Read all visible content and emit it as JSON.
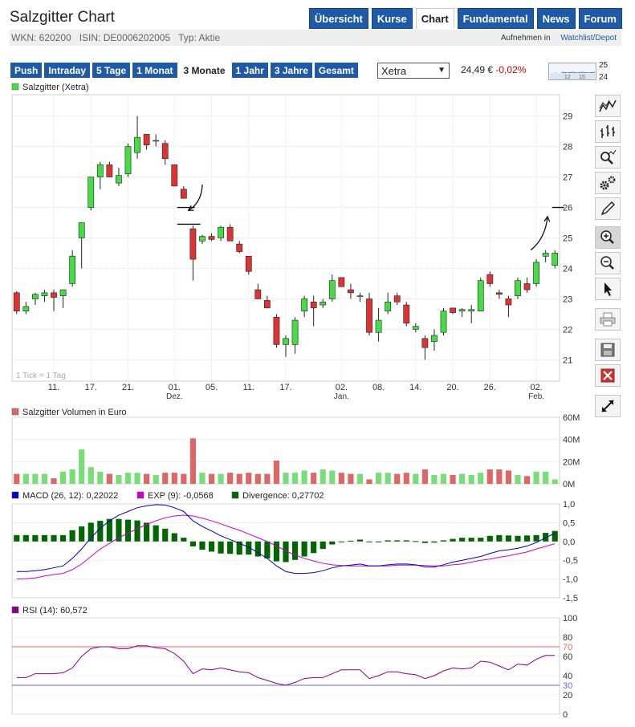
{
  "page": {
    "title": "Salzgitter Chart",
    "wkn": "WKN: 620200",
    "isin": "ISIN: DE0006202005",
    "type": "Typ: Aktie",
    "watchlist_prefix": "Aufnehmen in",
    "watchlist_link": "Watchlist/Depot"
  },
  "nav": [
    {
      "label": "Übersicht",
      "active": false
    },
    {
      "label": "Kurse",
      "active": false
    },
    {
      "label": "Chart",
      "active": true
    },
    {
      "label": "Fundamental",
      "active": false
    },
    {
      "label": "News",
      "active": false
    },
    {
      "label": "Forum",
      "active": false
    }
  ],
  "periods": [
    {
      "label": "Push",
      "active": false
    },
    {
      "label": "Intraday",
      "active": false
    },
    {
      "label": "5 Tage",
      "active": false
    },
    {
      "label": "1 Monat",
      "active": false
    },
    {
      "label": "3 Monate",
      "active": true
    },
    {
      "label": "1 Jahr",
      "active": false
    },
    {
      "label": "3 Jahre",
      "active": false
    },
    {
      "label": "Gesamt",
      "active": false
    }
  ],
  "exchange": {
    "selected": "Xetra"
  },
  "quote": {
    "price": "24,49 €",
    "change": "-0,02%"
  },
  "thumbnail": {
    "hi": "25",
    "lo": "24",
    "ticks": [
      "12",
      "15"
    ]
  },
  "tools": [
    "line-chart-icon",
    "ohlc-chart-icon",
    "indicator-search-icon",
    "settings-gears-icon",
    "draw-pencil-icon",
    "zoom-in-icon",
    "zoom-out-icon",
    "pointer-icon",
    "print-icon",
    "save-icon",
    "delete-icon",
    "expand-icon"
  ],
  "colors": {
    "up": "#44dd44",
    "down": "#dd3333",
    "macd": "#0000cc",
    "signal": "#cc00cc",
    "divergence": "#006600",
    "rsi": "#880088",
    "rsi_upper": "#ee6666",
    "rsi_lower": "#6666ee",
    "volume_up": "#77dd77",
    "volume_down": "#dd6666",
    "nav": "#1f5aa8"
  },
  "chart_data": [
    {
      "type": "candlestick",
      "legend": "Salzgitter (Xetra)",
      "note": "1 Tick = 1 Tag",
      "ylim": [
        20.3,
        29.7
      ],
      "yticks": [
        21,
        22,
        23,
        24,
        25,
        26,
        27,
        28,
        29
      ],
      "xticks": [
        {
          "label": "11.",
          "sub": ""
        },
        {
          "label": "17.",
          "sub": ""
        },
        {
          "label": "21.",
          "sub": ""
        },
        {
          "label": "01.",
          "sub": "Dez."
        },
        {
          "label": "05.",
          "sub": ""
        },
        {
          "label": "11.",
          "sub": ""
        },
        {
          "label": "17.",
          "sub": ""
        },
        {
          "label": "02.",
          "sub": "Jan."
        },
        {
          "label": "08.",
          "sub": ""
        },
        {
          "label": "14.",
          "sub": ""
        },
        {
          "label": "20.",
          "sub": ""
        },
        {
          "label": "26.",
          "sub": ""
        },
        {
          "label": "02.",
          "sub": "Feb."
        }
      ],
      "xtick_index": [
        4,
        8,
        12,
        17,
        21,
        25,
        29,
        35,
        39,
        43,
        47,
        51,
        56
      ],
      "candles": [
        [
          23.2,
          23.25,
          22.5,
          22.6
        ],
        [
          22.6,
          22.9,
          22.5,
          22.75
        ],
        [
          23.0,
          23.2,
          22.8,
          23.15
        ],
        [
          23.1,
          23.3,
          22.9,
          23.2
        ],
        [
          23.2,
          23.3,
          22.6,
          23.05
        ],
        [
          23.1,
          23.3,
          22.7,
          23.3
        ],
        [
          23.5,
          24.6,
          23.4,
          24.4
        ],
        [
          25.0,
          25.5,
          24.0,
          25.5
        ],
        [
          26.0,
          27.0,
          25.9,
          27.0
        ],
        [
          27.0,
          27.5,
          26.6,
          27.4
        ],
        [
          27.4,
          27.5,
          27.0,
          27.0
        ],
        [
          26.8,
          27.3,
          26.7,
          27.05
        ],
        [
          27.1,
          28.1,
          27.0,
          28.0
        ],
        [
          27.8,
          29.0,
          27.6,
          28.3
        ],
        [
          28.4,
          28.4,
          27.9,
          28.05
        ],
        [
          28.2,
          28.4,
          28.0,
          28.2
        ],
        [
          28.1,
          28.2,
          27.4,
          27.6
        ],
        [
          27.4,
          27.4,
          26.7,
          26.7
        ],
        [
          26.6,
          26.7,
          26.3,
          26.3
        ],
        [
          25.3,
          25.4,
          23.6,
          24.3
        ],
        [
          24.9,
          25.1,
          24.8,
          25.05
        ],
        [
          25.05,
          25.15,
          24.9,
          24.95
        ],
        [
          25.0,
          25.4,
          24.9,
          25.35
        ],
        [
          25.35,
          25.45,
          24.9,
          24.9
        ],
        [
          24.8,
          24.9,
          24.5,
          24.55
        ],
        [
          24.4,
          24.4,
          23.8,
          23.9
        ],
        [
          23.3,
          23.5,
          23.0,
          23.0
        ],
        [
          22.95,
          23.1,
          22.7,
          22.7
        ],
        [
          22.4,
          22.5,
          21.4,
          21.5
        ],
        [
          21.5,
          21.8,
          21.1,
          21.7
        ],
        [
          21.5,
          22.4,
          21.2,
          22.3
        ],
        [
          22.6,
          23.1,
          22.4,
          23.0
        ],
        [
          22.9,
          23.1,
          22.1,
          22.7
        ],
        [
          22.8,
          23.0,
          22.7,
          22.9
        ],
        [
          23.0,
          23.8,
          22.9,
          23.6
        ],
        [
          23.7,
          23.7,
          23.4,
          23.4
        ],
        [
          23.3,
          23.5,
          23.0,
          23.2
        ],
        [
          23.1,
          23.2,
          22.9,
          23.1
        ],
        [
          23.0,
          23.2,
          21.8,
          21.9
        ],
        [
          21.9,
          22.7,
          21.6,
          22.3
        ],
        [
          22.6,
          23.2,
          22.5,
          22.9
        ],
        [
          23.1,
          23.2,
          22.8,
          22.9
        ],
        [
          22.8,
          22.9,
          22.1,
          22.2
        ],
        [
          22.0,
          22.2,
          21.9,
          22.1
        ],
        [
          21.7,
          21.8,
          21.0,
          21.4
        ],
        [
          21.6,
          22.0,
          21.3,
          21.8
        ],
        [
          21.9,
          22.7,
          21.8,
          22.6
        ],
        [
          22.7,
          22.7,
          22.5,
          22.55
        ],
        [
          22.6,
          22.7,
          22.4,
          22.65
        ],
        [
          22.6,
          22.8,
          22.2,
          22.65
        ],
        [
          22.6,
          23.7,
          22.6,
          23.6
        ],
        [
          23.8,
          23.9,
          23.4,
          23.5
        ],
        [
          23.2,
          23.3,
          23.0,
          23.15
        ],
        [
          23.0,
          23.1,
          22.4,
          22.8
        ],
        [
          23.1,
          23.7,
          23.0,
          23.6
        ],
        [
          23.5,
          23.7,
          23.2,
          23.3
        ],
        [
          23.5,
          24.3,
          23.4,
          24.2
        ],
        [
          24.4,
          24.6,
          24.2,
          24.5
        ],
        [
          24.1,
          24.6,
          24.0,
          24.5
        ]
      ],
      "annotations": [
        {
          "type": "freehand-arrow",
          "desc": "hand-drawn arrow pointing at gap near 26",
          "from": [
            20,
            26.75
          ],
          "to": [
            18.5,
            25.9
          ]
        },
        {
          "type": "hline",
          "index_from": 17.3,
          "index_to": 19.2,
          "y": 26.0
        },
        {
          "type": "hline",
          "index_from": 17.3,
          "index_to": 19.8,
          "y": 25.45
        },
        {
          "type": "freehand-arrow",
          "desc": "hand-drawn arrow pointing up",
          "from": [
            55.4,
            24.6
          ],
          "to": [
            57.2,
            25.7
          ]
        },
        {
          "type": "hline",
          "index_from": 57.7,
          "index_to": 59.0,
          "y": 26.0
        }
      ]
    },
    {
      "type": "bar",
      "legend": "Salzgitter Volumen in Euro",
      "ylabels": [
        "60M",
        "40M",
        "20M",
        "0M"
      ],
      "ylim": [
        0,
        60
      ],
      "values": [
        9,
        9,
        9,
        9,
        5,
        11,
        13,
        31,
        15,
        11,
        9,
        8,
        10,
        10,
        9,
        8,
        10,
        10,
        9,
        41,
        10,
        9,
        9,
        10,
        9,
        10,
        9,
        9,
        21,
        10,
        10,
        12,
        10,
        13,
        12,
        10,
        9,
        9,
        4,
        10,
        10,
        9,
        10,
        9,
        13,
        8,
        9,
        8,
        9,
        8,
        10,
        13,
        13,
        12,
        8,
        7,
        11,
        11,
        4
      ]
    },
    {
      "type": "line",
      "legend": [
        {
          "name": "MACD (26, 12): 0,22022",
          "color": "#0000cc"
        },
        {
          "name": "EXP (9): -0,0568",
          "color": "#cc00cc"
        },
        {
          "name": "Divergence: 0,27702",
          "color": "#006600"
        }
      ],
      "ylim": [
        -1.5,
        1.0
      ],
      "ylabels": [
        "1,0",
        "0,5",
        "0,0",
        "-0,5",
        "-1,0",
        "-1,5"
      ],
      "macd": [
        -0.8,
        -0.8,
        -0.78,
        -0.75,
        -0.7,
        -0.65,
        -0.45,
        -0.2,
        0.1,
        0.35,
        0.55,
        0.7,
        0.8,
        0.9,
        0.95,
        0.98,
        0.97,
        0.9,
        0.8,
        0.55,
        0.4,
        0.28,
        0.15,
        0.05,
        -0.05,
        -0.15,
        -0.3,
        -0.45,
        -0.65,
        -0.8,
        -0.85,
        -0.85,
        -0.83,
        -0.78,
        -0.7,
        -0.65,
        -0.63,
        -0.6,
        -0.65,
        -0.65,
        -0.62,
        -0.6,
        -0.6,
        -0.62,
        -0.68,
        -0.68,
        -0.62,
        -0.55,
        -0.5,
        -0.45,
        -0.4,
        -0.32,
        -0.25,
        -0.22,
        -0.18,
        -0.12,
        -0.03,
        0.1,
        0.22
      ],
      "signal": [
        -1.0,
        -0.99,
        -0.97,
        -0.92,
        -0.88,
        -0.85,
        -0.75,
        -0.6,
        -0.4,
        -0.2,
        -0.05,
        0.1,
        0.22,
        0.34,
        0.45,
        0.55,
        0.63,
        0.68,
        0.7,
        0.68,
        0.62,
        0.55,
        0.47,
        0.38,
        0.3,
        0.2,
        0.1,
        0.0,
        -0.12,
        -0.25,
        -0.36,
        -0.45,
        -0.52,
        -0.58,
        -0.62,
        -0.64,
        -0.65,
        -0.65,
        -0.65,
        -0.65,
        -0.65,
        -0.63,
        -0.63,
        -0.63,
        -0.64,
        -0.65,
        -0.65,
        -0.62,
        -0.6,
        -0.55,
        -0.5,
        -0.47,
        -0.42,
        -0.38,
        -0.33,
        -0.28,
        -0.2,
        -0.13,
        -0.06
      ],
      "divergence": [
        0.17,
        0.17,
        0.17,
        0.17,
        0.17,
        0.17,
        0.3,
        0.4,
        0.5,
        0.55,
        0.6,
        0.6,
        0.58,
        0.56,
        0.5,
        0.43,
        0.34,
        0.22,
        0.1,
        -0.13,
        -0.22,
        -0.27,
        -0.32,
        -0.33,
        -0.35,
        -0.35,
        -0.4,
        -0.45,
        -0.53,
        -0.55,
        -0.49,
        -0.4,
        -0.31,
        -0.2,
        -0.08,
        -0.01,
        0.02,
        0.05,
        0.0,
        0.0,
        0.03,
        0.03,
        0.03,
        0.01,
        -0.04,
        -0.03,
        0.03,
        0.07,
        0.1,
        0.1,
        0.1,
        0.15,
        0.17,
        0.16,
        0.15,
        0.16,
        0.17,
        0.23,
        0.28
      ]
    },
    {
      "type": "line",
      "legend": "RSI (14): 60,572",
      "ylim": [
        0,
        100
      ],
      "ylabels": [
        "100",
        "80",
        "70",
        "60",
        "40",
        "30",
        "20",
        "0"
      ],
      "upper": 70,
      "lower": 30,
      "values": [
        38,
        38,
        42,
        42,
        42,
        43,
        48,
        60,
        68,
        70,
        70,
        68,
        68,
        71,
        71,
        69,
        68,
        63,
        55,
        42,
        47,
        46,
        48,
        46,
        44,
        43,
        38,
        35,
        32,
        30,
        33,
        37,
        38,
        38,
        42,
        46,
        46,
        46,
        37,
        40,
        44,
        44,
        42,
        41,
        37,
        40,
        45,
        48,
        47,
        48,
        55,
        54,
        50,
        46,
        52,
        51,
        57,
        61,
        61
      ]
    }
  ]
}
